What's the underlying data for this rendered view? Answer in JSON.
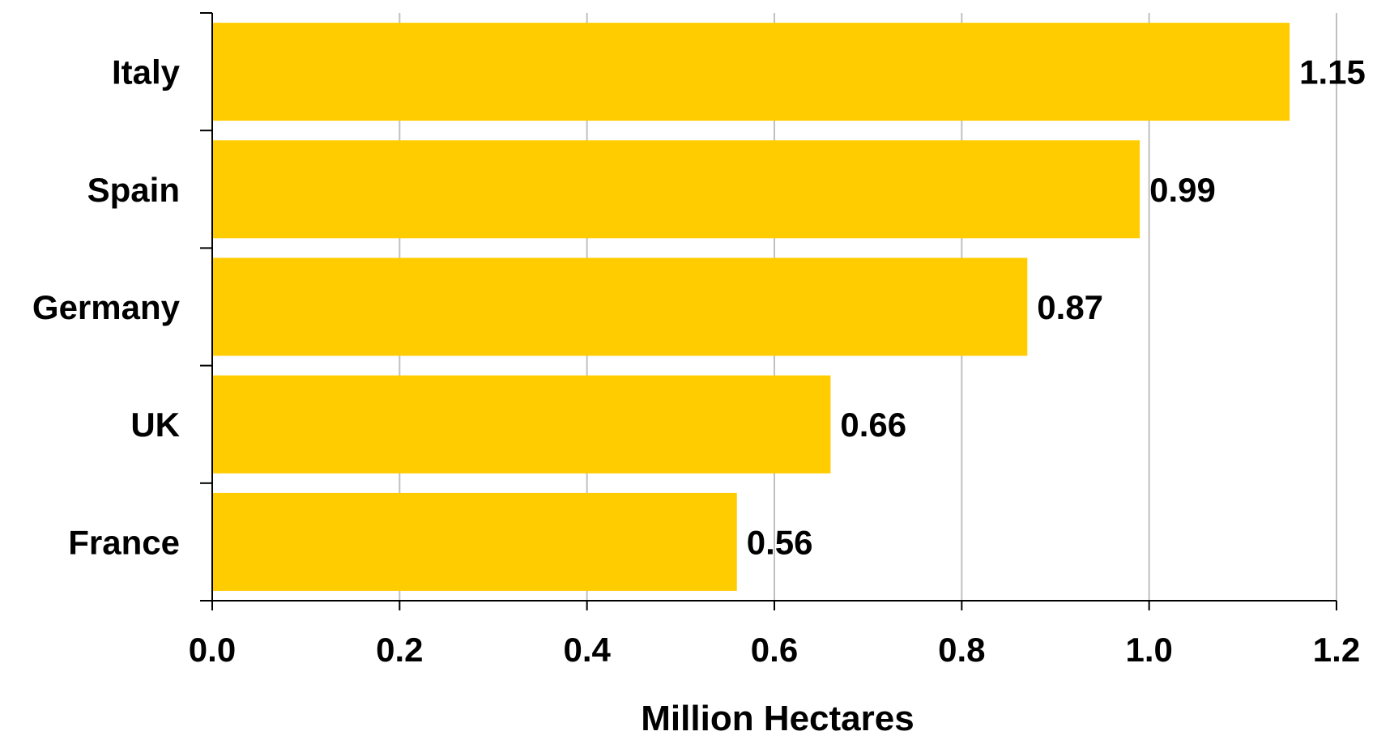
{
  "chart_data": {
    "type": "bar",
    "orientation": "horizontal",
    "categories": [
      "Italy",
      "Spain",
      "Germany",
      "UK",
      "France"
    ],
    "values": [
      1.15,
      0.99,
      0.87,
      0.66,
      0.56
    ],
    "value_labels": [
      "1.15",
      "0.99",
      "0.87",
      "0.66",
      "0.56"
    ],
    "title": "",
    "xlabel": "Million Hectares",
    "ylabel": "",
    "xlim": [
      0,
      1.2
    ],
    "xticks": [
      0.0,
      0.2,
      0.4,
      0.6,
      0.8,
      1.0,
      1.2
    ],
    "xtick_labels": [
      "0.0",
      "0.2",
      "0.4",
      "0.6",
      "0.8",
      "1.0",
      "1.2"
    ],
    "grid": "vertical",
    "legend": "none"
  },
  "colors": {
    "bar": "#FFCC00",
    "grid": "#C0C0C0",
    "axis": "#000000",
    "text": "#000000"
  }
}
